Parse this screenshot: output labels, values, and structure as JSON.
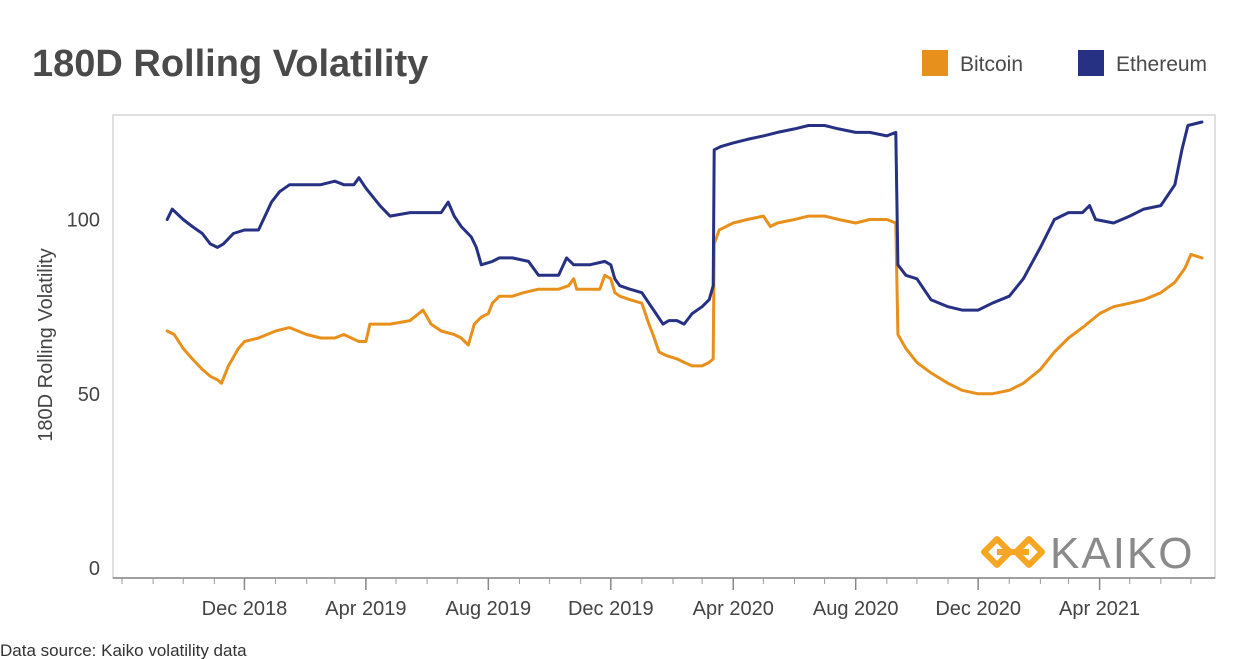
{
  "title": "180D Rolling Volatility",
  "legend": [
    {
      "label": "Bitcoin",
      "color": "#E8901C"
    },
    {
      "label": "Ethereum",
      "color": "#263184"
    }
  ],
  "source": "Data source: Kaiko volatility data",
  "logo": {
    "text": "KAIKO",
    "icon": "kaiko-diamond-chain-icon",
    "color": "#F5A623"
  },
  "chart_data": {
    "type": "line",
    "title": "180D Rolling Volatility",
    "xlabel": "",
    "ylabel": "180D Rolling Volatility",
    "xlim": [
      "2018-08-01",
      "2021-07-20"
    ],
    "ylim": [
      0,
      130
    ],
    "yticks": [
      0,
      50,
      100
    ],
    "xticks": [
      "2018-12-01",
      "2019-04-01",
      "2019-08-01",
      "2019-12-01",
      "2020-04-01",
      "2020-08-01",
      "2020-12-01",
      "2021-04-01"
    ],
    "xtick_labels": [
      "Dec 2018",
      "Apr 2019",
      "Aug 2019",
      "Dec 2019",
      "Apr 2020",
      "Aug 2020",
      "Dec 2020",
      "Apr 2021"
    ],
    "grid": false,
    "legend_position": "top-right",
    "series": [
      {
        "name": "Bitcoin",
        "color": "#E8901C",
        "points": [
          [
            "2018-09-15",
            68
          ],
          [
            "2018-09-22",
            67
          ],
          [
            "2018-10-01",
            63
          ],
          [
            "2018-10-10",
            60
          ],
          [
            "2018-10-20",
            57
          ],
          [
            "2018-10-28",
            55
          ],
          [
            "2018-11-04",
            54
          ],
          [
            "2018-11-08",
            53
          ],
          [
            "2018-11-15",
            58
          ],
          [
            "2018-11-25",
            63
          ],
          [
            "2018-12-01",
            65
          ],
          [
            "2018-12-15",
            66
          ],
          [
            "2019-01-01",
            68
          ],
          [
            "2019-01-15",
            69
          ],
          [
            "2019-02-01",
            67
          ],
          [
            "2019-02-15",
            66
          ],
          [
            "2019-03-01",
            66
          ],
          [
            "2019-03-10",
            67
          ],
          [
            "2019-03-25",
            65
          ],
          [
            "2019-04-01",
            65
          ],
          [
            "2019-04-05",
            70
          ],
          [
            "2019-04-25",
            70
          ],
          [
            "2019-05-15",
            71
          ],
          [
            "2019-05-28",
            74
          ],
          [
            "2019-06-05",
            70
          ],
          [
            "2019-06-15",
            68
          ],
          [
            "2019-06-28",
            67
          ],
          [
            "2019-07-05",
            66
          ],
          [
            "2019-07-12",
            64
          ],
          [
            "2019-07-18",
            70
          ],
          [
            "2019-07-25",
            72
          ],
          [
            "2019-08-01",
            73
          ],
          [
            "2019-08-05",
            76
          ],
          [
            "2019-08-12",
            78
          ],
          [
            "2019-08-25",
            78
          ],
          [
            "2019-09-05",
            79
          ],
          [
            "2019-09-20",
            80
          ],
          [
            "2019-10-10",
            80
          ],
          [
            "2019-10-20",
            81
          ],
          [
            "2019-10-25",
            83
          ],
          [
            "2019-10-28",
            80
          ],
          [
            "2019-11-10",
            80
          ],
          [
            "2019-11-20",
            80
          ],
          [
            "2019-11-25",
            84
          ],
          [
            "2019-12-01",
            83
          ],
          [
            "2019-12-05",
            79
          ],
          [
            "2019-12-10",
            78
          ],
          [
            "2019-12-20",
            77
          ],
          [
            "2020-01-01",
            76
          ],
          [
            "2020-01-08",
            70
          ],
          [
            "2020-01-12",
            67
          ],
          [
            "2020-01-18",
            62
          ],
          [
            "2020-01-25",
            61
          ],
          [
            "2020-02-05",
            60
          ],
          [
            "2020-02-12",
            59
          ],
          [
            "2020-02-20",
            58
          ],
          [
            "2020-03-01",
            58
          ],
          [
            "2020-03-08",
            59
          ],
          [
            "2020-03-12",
            60
          ],
          [
            "2020-03-13",
            93
          ],
          [
            "2020-03-18",
            97
          ],
          [
            "2020-04-01",
            99
          ],
          [
            "2020-04-15",
            100
          ],
          [
            "2020-05-01",
            101
          ],
          [
            "2020-05-08",
            98
          ],
          [
            "2020-05-15",
            99
          ],
          [
            "2020-06-01",
            100
          ],
          [
            "2020-06-15",
            101
          ],
          [
            "2020-07-01",
            101
          ],
          [
            "2020-07-15",
            100
          ],
          [
            "2020-08-01",
            99
          ],
          [
            "2020-08-15",
            100
          ],
          [
            "2020-09-01",
            100
          ],
          [
            "2020-09-10",
            99
          ],
          [
            "2020-09-12",
            67
          ],
          [
            "2020-09-20",
            63
          ],
          [
            "2020-10-01",
            59
          ],
          [
            "2020-10-15",
            56
          ],
          [
            "2020-11-01",
            53
          ],
          [
            "2020-11-15",
            51
          ],
          [
            "2020-12-01",
            50
          ],
          [
            "2020-12-15",
            50
          ],
          [
            "2021-01-01",
            51
          ],
          [
            "2021-01-15",
            53
          ],
          [
            "2021-02-01",
            57
          ],
          [
            "2021-02-15",
            62
          ],
          [
            "2021-03-01",
            66
          ],
          [
            "2021-03-15",
            69
          ],
          [
            "2021-04-01",
            73
          ],
          [
            "2021-04-15",
            75
          ],
          [
            "2021-05-01",
            76
          ],
          [
            "2021-05-15",
            77
          ],
          [
            "2021-06-01",
            79
          ],
          [
            "2021-06-15",
            82
          ],
          [
            "2021-06-25",
            86
          ],
          [
            "2021-07-01",
            90
          ],
          [
            "2021-07-12",
            89
          ]
        ]
      },
      {
        "name": "Ethereum",
        "color": "#263184",
        "points": [
          [
            "2018-09-15",
            100
          ],
          [
            "2018-09-20",
            103
          ],
          [
            "2018-10-01",
            100
          ],
          [
            "2018-10-10",
            98
          ],
          [
            "2018-10-20",
            96
          ],
          [
            "2018-10-28",
            93
          ],
          [
            "2018-11-04",
            92
          ],
          [
            "2018-11-10",
            93
          ],
          [
            "2018-11-20",
            96
          ],
          [
            "2018-12-01",
            97
          ],
          [
            "2018-12-15",
            97
          ],
          [
            "2018-12-28",
            105
          ],
          [
            "2019-01-05",
            108
          ],
          [
            "2019-01-15",
            110
          ],
          [
            "2019-02-01",
            110
          ],
          [
            "2019-02-15",
            110
          ],
          [
            "2019-03-01",
            111
          ],
          [
            "2019-03-10",
            110
          ],
          [
            "2019-03-20",
            110
          ],
          [
            "2019-03-25",
            112
          ],
          [
            "2019-04-01",
            109
          ],
          [
            "2019-04-15",
            104
          ],
          [
            "2019-04-25",
            101
          ],
          [
            "2019-05-15",
            102
          ],
          [
            "2019-06-01",
            102
          ],
          [
            "2019-06-15",
            102
          ],
          [
            "2019-06-22",
            105
          ],
          [
            "2019-06-28",
            101
          ],
          [
            "2019-07-05",
            98
          ],
          [
            "2019-07-15",
            95
          ],
          [
            "2019-07-20",
            92
          ],
          [
            "2019-07-25",
            87
          ],
          [
            "2019-08-05",
            88
          ],
          [
            "2019-08-12",
            89
          ],
          [
            "2019-08-25",
            89
          ],
          [
            "2019-09-10",
            88
          ],
          [
            "2019-09-20",
            84
          ],
          [
            "2019-10-01",
            84
          ],
          [
            "2019-10-10",
            84
          ],
          [
            "2019-10-18",
            89
          ],
          [
            "2019-10-25",
            87
          ],
          [
            "2019-11-10",
            87
          ],
          [
            "2019-11-25",
            88
          ],
          [
            "2019-12-01",
            87
          ],
          [
            "2019-12-05",
            83
          ],
          [
            "2019-12-10",
            81
          ],
          [
            "2019-12-20",
            80
          ],
          [
            "2020-01-01",
            79
          ],
          [
            "2020-01-08",
            76
          ],
          [
            "2020-01-15",
            73
          ],
          [
            "2020-01-22",
            70
          ],
          [
            "2020-01-28",
            71
          ],
          [
            "2020-02-05",
            71
          ],
          [
            "2020-02-12",
            70
          ],
          [
            "2020-02-20",
            73
          ],
          [
            "2020-03-01",
            75
          ],
          [
            "2020-03-08",
            77
          ],
          [
            "2020-03-12",
            81
          ],
          [
            "2020-03-13",
            120
          ],
          [
            "2020-03-20",
            121
          ],
          [
            "2020-04-01",
            122
          ],
          [
            "2020-04-15",
            123
          ],
          [
            "2020-05-01",
            124
          ],
          [
            "2020-05-15",
            125
          ],
          [
            "2020-06-01",
            126
          ],
          [
            "2020-06-15",
            127
          ],
          [
            "2020-07-01",
            127
          ],
          [
            "2020-07-15",
            126
          ],
          [
            "2020-08-01",
            125
          ],
          [
            "2020-08-15",
            125
          ],
          [
            "2020-09-01",
            124
          ],
          [
            "2020-09-10",
            125
          ],
          [
            "2020-09-12",
            87
          ],
          [
            "2020-09-20",
            84
          ],
          [
            "2020-10-01",
            83
          ],
          [
            "2020-10-15",
            77
          ],
          [
            "2020-11-01",
            75
          ],
          [
            "2020-11-15",
            74
          ],
          [
            "2020-12-01",
            74
          ],
          [
            "2020-12-15",
            76
          ],
          [
            "2021-01-01",
            78
          ],
          [
            "2021-01-15",
            83
          ],
          [
            "2021-02-01",
            92
          ],
          [
            "2021-02-15",
            100
          ],
          [
            "2021-03-01",
            102
          ],
          [
            "2021-03-15",
            102
          ],
          [
            "2021-03-22",
            104
          ],
          [
            "2021-03-28",
            100
          ],
          [
            "2021-04-15",
            99
          ],
          [
            "2021-05-01",
            101
          ],
          [
            "2021-05-15",
            103
          ],
          [
            "2021-06-01",
            104
          ],
          [
            "2021-06-15",
            110
          ],
          [
            "2021-06-22",
            120
          ],
          [
            "2021-06-28",
            127
          ],
          [
            "2021-07-12",
            128
          ]
        ]
      }
    ]
  }
}
